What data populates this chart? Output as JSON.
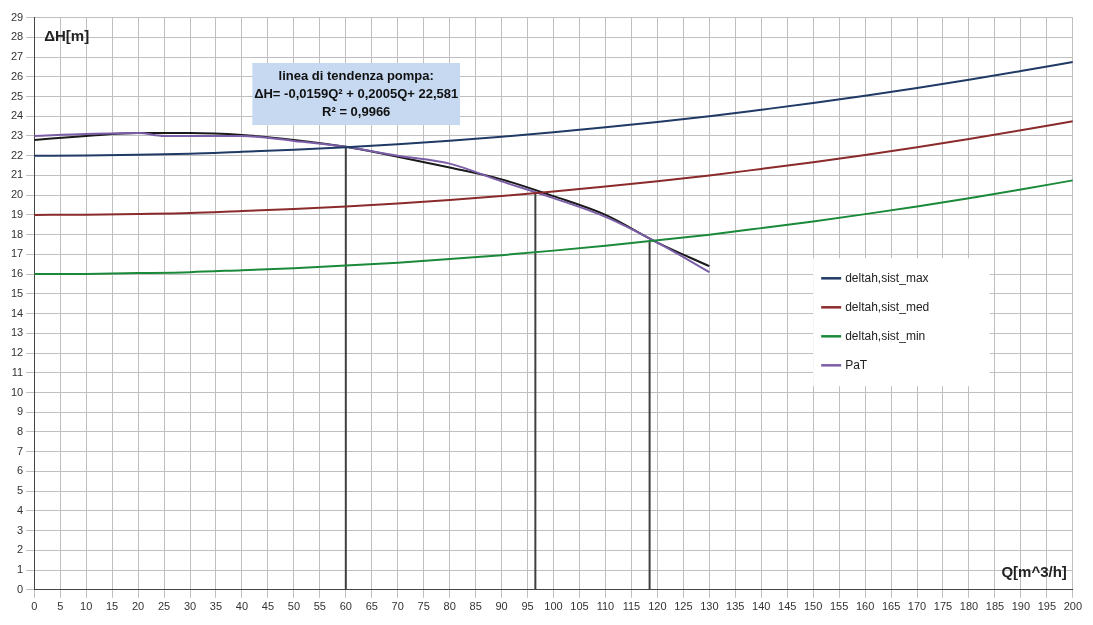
{
  "chart_data": {
    "type": "line",
    "xlabel": "Q[m^3/h]",
    "ylabel": "ΔH[m]",
    "x": [
      0,
      10,
      20,
      30,
      40,
      50,
      60,
      70,
      80,
      90,
      100,
      110,
      120,
      130,
      140,
      150,
      160,
      170,
      180,
      190,
      200
    ],
    "xlim": [
      0,
      200
    ],
    "xticks": [
      0,
      5,
      10,
      15,
      20,
      25,
      30,
      35,
      40,
      45,
      50,
      55,
      60,
      65,
      70,
      75,
      80,
      85,
      90,
      95,
      100,
      105,
      110,
      115,
      120,
      125,
      130,
      135,
      140,
      145,
      150,
      155,
      160,
      165,
      170,
      175,
      180,
      185,
      190,
      195,
      200
    ],
    "ylim": [
      0,
      29
    ],
    "yticks": [
      0,
      1,
      2,
      3,
      4,
      5,
      6,
      7,
      8,
      9,
      10,
      11,
      12,
      13,
      14,
      15,
      16,
      17,
      18,
      19,
      20,
      21,
      22,
      23,
      24,
      25,
      26,
      27,
      28,
      29
    ],
    "grid": true,
    "legend": "right",
    "marker": "none",
    "line_style": "solid",
    "annotations": [
      "linea di tendenza pompa:",
      "ΔH= -0,0159Q² + 0,2005Q+ 22,581",
      "R² = 0,9966"
    ],
    "series": [
      {
        "name": "deltah,sist_max",
        "color": "#1f3a64",
        "values": [
          22,
          22.01,
          22.05,
          22.1,
          22.2,
          22.3,
          22.43,
          22.58,
          22.76,
          22.96,
          23.19,
          23.44,
          23.71,
          24.0,
          24.33,
          24.67,
          25.04,
          25.43,
          25.85,
          26.29,
          26.75
        ]
      },
      {
        "name": "deltah,sist_med",
        "color": "#8b2a2a",
        "values": [
          19,
          19.01,
          19.05,
          19.1,
          19.2,
          19.3,
          19.43,
          19.58,
          19.76,
          19.96,
          20.19,
          20.44,
          20.71,
          21.0,
          21.33,
          21.67,
          22.04,
          22.43,
          22.85,
          23.29,
          23.75
        ]
      },
      {
        "name": "deltah,sist_min",
        "color": "#1a8a3a",
        "values": [
          16,
          16.01,
          16.05,
          16.1,
          16.2,
          16.3,
          16.43,
          16.58,
          16.76,
          16.96,
          17.19,
          17.44,
          17.71,
          18.0,
          18.33,
          18.67,
          19.04,
          19.43,
          19.85,
          20.29,
          20.75
        ]
      },
      {
        "name": "PaT",
        "color": "#7b5ea7",
        "x": [
          0,
          10,
          20,
          25,
          30,
          40,
          50,
          60,
          70,
          80,
          90,
          100,
          110,
          120,
          130
        ],
        "values": [
          23.0,
          23.1,
          23.15,
          23.0,
          23.0,
          23.0,
          22.75,
          22.45,
          22.0,
          21.6,
          20.7,
          19.85,
          18.9,
          17.6,
          16.1
        ]
      },
      {
        "color": "#1a1a1a",
        "x": [
          0,
          10,
          20,
          30,
          40,
          50,
          60,
          70,
          80,
          90,
          100,
          110,
          120,
          130
        ],
        "values": [
          22.8,
          23.0,
          23.15,
          23.15,
          23.05,
          22.8,
          22.45,
          21.95,
          21.4,
          20.8,
          19.95,
          19.0,
          17.6,
          16.4
        ]
      },
      {
        "color": "#404040",
        "x": [
          60,
          60
        ],
        "values": [
          0,
          22.45
        ]
      },
      {
        "color": "#404040",
        "x": [
          96.5,
          96.5
        ],
        "values": [
          0,
          20.1
        ]
      },
      {
        "color": "#404040",
        "x": [
          118.5,
          118.5
        ],
        "values": [
          0,
          17.7
        ]
      }
    ]
  }
}
